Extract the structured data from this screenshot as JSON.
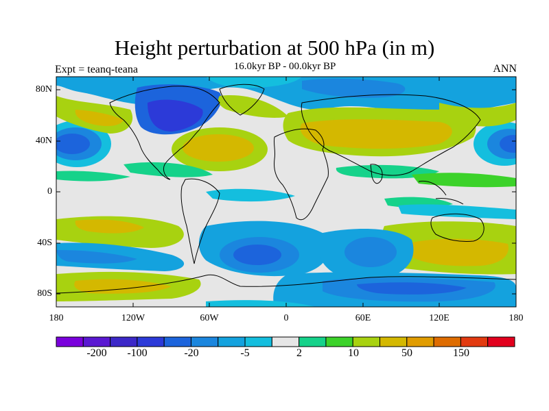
{
  "figure": {
    "title": "Height perturbation at 500 hPa (in m)",
    "subtitle": "16.0kyr BP - 00.0kyr BP",
    "left_label": "Expt = teanq-teana",
    "right_label": "ANN"
  },
  "axes": {
    "lat_ticks": [
      "80N",
      "40N",
      "0",
      "40S",
      "80S"
    ],
    "lon_ticks": [
      "180",
      "120W",
      "60W",
      "0",
      "60E",
      "120E",
      "180"
    ]
  },
  "colorbar": {
    "colors": [
      "#7a00dc",
      "#5a18d2",
      "#3c28c8",
      "#2c3ad8",
      "#1c64dc",
      "#1b86de",
      "#14a2de",
      "#14bede",
      "#e6e6e6",
      "#16d28a",
      "#3cd22a",
      "#a8d210",
      "#d4b800",
      "#e09c00",
      "#de6c00",
      "#e23a10",
      "#e2001e"
    ],
    "tick_labels": [
      "-200",
      "-100",
      "-20",
      "-5",
      "2",
      "10",
      "50",
      "150"
    ]
  },
  "map_regions": [
    {
      "name": "north-america-low",
      "color": "#2c3ad8",
      "lon": -85,
      "lat": 55
    },
    {
      "name": "north-pacific-low",
      "color": "#1c64dc",
      "lon": -165,
      "lat": 42
    },
    {
      "name": "north-atlantic-high",
      "color": "#d4b800",
      "lon": -40,
      "lat": 35
    },
    {
      "name": "eurasia-high",
      "color": "#d4b800",
      "lon": 60,
      "lat": 45
    },
    {
      "name": "south-atlantic-low",
      "color": "#1c64dc",
      "lon": -25,
      "lat": -48
    },
    {
      "name": "southern-ocean-low",
      "color": "#1c64dc",
      "lon": 75,
      "lat": -55
    },
    {
      "name": "indian-ocean-high",
      "color": "#d4b800",
      "lon": 120,
      "lat": -40
    },
    {
      "name": "south-pacific-high",
      "color": "#d4b800",
      "lon": -150,
      "lat": -75
    }
  ]
}
